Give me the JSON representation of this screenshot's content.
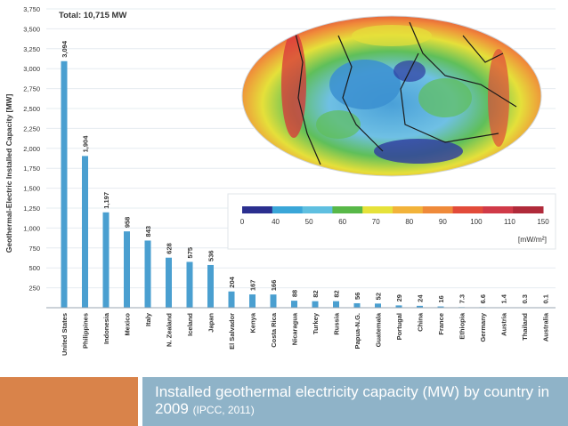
{
  "chart_data": {
    "type": "bar",
    "title": "Total: 10,715 MW",
    "ylabel": "Geothermal-Electric Installed Capacity [MW]",
    "xlabel": "",
    "ylim": [
      0,
      3750
    ],
    "yticks": [
      250,
      500,
      750,
      "1,000",
      "1,250",
      "1,500",
      "1,750",
      "2,000",
      "2,250",
      "2,500",
      "2,750",
      "3,000",
      "3,250",
      "3,500",
      "3,750"
    ],
    "categories": [
      "United States",
      "Philippines",
      "Indonesia",
      "Mexico",
      "Italy",
      "N. Zealand",
      "Iceland",
      "Japan",
      "El Salvador",
      "Kenya",
      "Costa Rica",
      "Nicaragua",
      "Turkey",
      "Russia",
      "Papua-N.G.",
      "Guatemala",
      "Portugal",
      "China",
      "France",
      "Ethiopia",
      "Germany",
      "Austria",
      "Thailand",
      "Australia"
    ],
    "values": [
      3094,
      1904,
      1197,
      958,
      843,
      628,
      575,
      536,
      204,
      167,
      166,
      88,
      82,
      82,
      56,
      52,
      29,
      24,
      16,
      7.3,
      6.6,
      1.4,
      0.3,
      0.1
    ],
    "value_labels": [
      "3,094",
      "1,904",
      "1,197",
      "958",
      "843",
      "628",
      "575",
      "536",
      "204",
      "167",
      "166",
      "88",
      "82",
      "82",
      "56",
      "52",
      "29",
      "24",
      "16",
      "7.3",
      "6.6",
      "1.4",
      "0.3",
      "0.1"
    ],
    "grid": true,
    "colors": {
      "bar": "#4a9fd0",
      "grid": "#e6ecf1",
      "text": "#333333"
    }
  },
  "heat_flow_map": {
    "legend_ticks": [
      "0",
      "40",
      "50",
      "60",
      "70",
      "80",
      "90",
      "100",
      "110",
      "150"
    ],
    "unit": "[mW/m²]",
    "legend_colors": [
      "#2b2f8f",
      "#3aa6d8",
      "#5fbfe0",
      "#58b848",
      "#e6e23a",
      "#f2b33a",
      "#ef8a3a",
      "#e24b3a",
      "#d03a48",
      "#b02a3a"
    ]
  },
  "caption": {
    "main": "Installed geothermal electricity capacity (MW) by country in 2009",
    "source": "(IPCC, 2011)"
  },
  "colors": {
    "accent": "#d9834a",
    "caption_bg": "#8fb3c8"
  }
}
